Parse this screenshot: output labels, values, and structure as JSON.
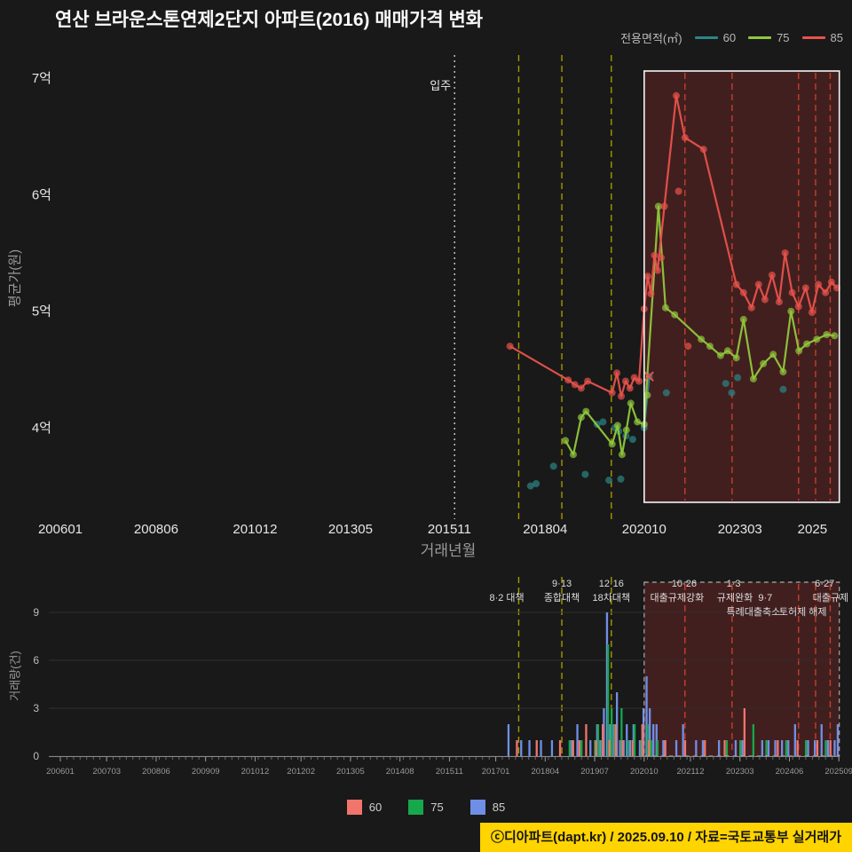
{
  "page": {
    "title": "연산 브라운스톤연제2단지 아파트(2016) 매매가격 변화",
    "footer_credit": "ⓒ디아파트(dapt.kr) / 2025.09.10 / 자료=국토교통부 실거래가"
  },
  "colors": {
    "background": "#191919",
    "highlight_fill": "rgba(163,45,45,0.30)",
    "highlight_border": "#f5f5f5",
    "highlight_border_dashed": "#aaaaaa",
    "event_yellow": "#a89700",
    "event_orange": "#c2402c",
    "movein_line": "#cccccc",
    "footer_bg": "#ffd400",
    "axis_text": "#e6e6e6",
    "muted_text": "#9a9a9a",
    "grid": "#2e2e2e"
  },
  "legend_top": {
    "title": "전용면적(㎡)",
    "items": [
      {
        "label": "60",
        "color": "#2b8686"
      },
      {
        "label": "75",
        "color": "#90c83c"
      },
      {
        "label": "85",
        "color": "#e8524c"
      }
    ]
  },
  "legend_bottom": {
    "items": [
      {
        "label": "60",
        "color": "#f1756a"
      },
      {
        "label": "75",
        "color": "#17a74c"
      },
      {
        "label": "85",
        "color": "#6f8fe6"
      }
    ]
  },
  "chart_data": [
    {
      "id": "price",
      "type": "line",
      "title": "연산 브라운스톤연제2단지 아파트(2016) 매매가격 변화",
      "xlabel": "거래년월",
      "ylabel": "평균가(원)",
      "x_range": [
        2006.04,
        2025.72
      ],
      "ylim": [
        3.2,
        7.2
      ],
      "yticks": [
        {
          "v": 4,
          "label": "4억"
        },
        {
          "v": 5,
          "label": "5억"
        },
        {
          "v": 6,
          "label": "6억"
        },
        {
          "v": 7,
          "label": "7억"
        }
      ],
      "xticks": [
        {
          "t": 2006.04,
          "label": "200601"
        },
        {
          "t": 2008.46,
          "label": "200806"
        },
        {
          "t": 2010.96,
          "label": "201012"
        },
        {
          "t": 2013.37,
          "label": "201305"
        },
        {
          "t": 2015.87,
          "label": "201511"
        },
        {
          "t": 2018.29,
          "label": "201804"
        },
        {
          "t": 2020.79,
          "label": "202010"
        },
        {
          "t": 2023.21,
          "label": "202303"
        },
        {
          "t": 2025.04,
          "label": "2025"
        }
      ],
      "movein_line": {
        "t": 2016.0,
        "label": "입주"
      },
      "event_lines_yellow": [
        {
          "t": 2017.62
        },
        {
          "t": 2018.71
        },
        {
          "t": 2019.96
        }
      ],
      "event_lines_orange": [
        {
          "t": 2021.82
        },
        {
          "t": 2023.01
        },
        {
          "t": 2024.69
        },
        {
          "t": 2025.12
        },
        {
          "t": 2025.49
        }
      ],
      "highlight_region": {
        "t0": 2020.79,
        "t1": 2025.72
      },
      "series": [
        {
          "name": "60",
          "color": "#2b8686",
          "line": [
            [
              2020.79,
              4.0
            ],
            [
              2020.92,
              4.44
            ]
          ],
          "extra_points": [
            [
              2017.92,
              3.5
            ],
            [
              2018.06,
              3.52
            ],
            [
              2018.5,
              3.67
            ],
            [
              2019.3,
              3.6
            ],
            [
              2019.6,
              4.03
            ],
            [
              2019.75,
              4.05
            ],
            [
              2019.9,
              3.55
            ],
            [
              2020.05,
              4.0
            ],
            [
              2020.15,
              3.97
            ],
            [
              2020.2,
              3.56
            ],
            [
              2020.33,
              3.93
            ],
            [
              2020.5,
              3.9
            ],
            [
              2021.35,
              4.3
            ],
            [
              2022.85,
              4.38
            ],
            [
              2023.0,
              4.3
            ],
            [
              2023.15,
              4.43
            ],
            [
              2024.3,
              4.33
            ]
          ]
        },
        {
          "name": "75",
          "color": "#90c83c",
          "line": [
            [
              2018.8,
              3.89
            ],
            [
              2019.0,
              3.77
            ],
            [
              2019.2,
              4.09
            ],
            [
              2019.32,
              4.14
            ],
            [
              2019.98,
              3.86
            ],
            [
              2020.12,
              4.02
            ],
            [
              2020.23,
              3.77
            ],
            [
              2020.34,
              3.98
            ],
            [
              2020.45,
              4.21
            ],
            [
              2020.62,
              4.05
            ],
            [
              2020.79,
              4.03
            ],
            [
              2021.15,
              5.9
            ],
            [
              2021.33,
              5.03
            ],
            [
              2021.56,
              4.97
            ],
            [
              2022.23,
              4.76
            ],
            [
              2022.45,
              4.7
            ],
            [
              2022.72,
              4.62
            ],
            [
              2022.9,
              4.66
            ],
            [
              2023.12,
              4.6
            ],
            [
              2023.3,
              4.93
            ],
            [
              2023.55,
              4.42
            ],
            [
              2023.8,
              4.55
            ],
            [
              2024.05,
              4.63
            ],
            [
              2024.3,
              4.48
            ],
            [
              2024.5,
              5.0
            ],
            [
              2024.7,
              4.66
            ],
            [
              2024.9,
              4.72
            ],
            [
              2025.15,
              4.76
            ],
            [
              2025.4,
              4.8
            ],
            [
              2025.6,
              4.79
            ]
          ],
          "extra_points": [
            [
              2020.87,
              4.28
            ]
          ]
        },
        {
          "name": "85",
          "color": "#e8524c",
          "line": [
            [
              2017.4,
              4.7
            ],
            [
              2018.87,
              4.41
            ],
            [
              2019.04,
              4.37
            ],
            [
              2019.2,
              4.34
            ],
            [
              2019.36,
              4.4
            ],
            [
              2019.98,
              4.3
            ],
            [
              2020.1,
              4.47
            ],
            [
              2020.21,
              4.27
            ],
            [
              2020.32,
              4.4
            ],
            [
              2020.43,
              4.34
            ],
            [
              2020.54,
              4.43
            ],
            [
              2020.66,
              4.4
            ],
            [
              2020.79,
              5.02
            ],
            [
              2020.88,
              5.3
            ],
            [
              2020.96,
              5.15
            ],
            [
              2021.05,
              5.48
            ],
            [
              2021.13,
              5.35
            ],
            [
              2021.3,
              5.9
            ],
            [
              2021.6,
              6.85
            ],
            [
              2021.82,
              6.49
            ],
            [
              2022.29,
              6.39
            ],
            [
              2023.12,
              5.23
            ],
            [
              2023.3,
              5.16
            ],
            [
              2023.5,
              5.03
            ],
            [
              2023.68,
              5.23
            ],
            [
              2023.84,
              5.1
            ],
            [
              2024.02,
              5.31
            ],
            [
              2024.2,
              5.08
            ],
            [
              2024.35,
              5.5
            ],
            [
              2024.53,
              5.16
            ],
            [
              2024.69,
              5.04
            ],
            [
              2024.87,
              5.2
            ],
            [
              2025.03,
              4.99
            ],
            [
              2025.19,
              5.23
            ],
            [
              2025.37,
              5.16
            ],
            [
              2025.52,
              5.25
            ],
            [
              2025.66,
              5.2
            ]
          ],
          "extra_points": [
            [
              2021.22,
              5.46
            ],
            [
              2021.66,
              6.03
            ],
            [
              2021.9,
              4.7
            ]
          ],
          "x_marker": [
            2020.91,
            4.44
          ]
        }
      ]
    },
    {
      "id": "volume",
      "type": "bar",
      "ylabel": "거래량(건)",
      "ylim": [
        0,
        9
      ],
      "yticks": [
        0,
        3,
        6,
        9
      ],
      "xticks": [
        {
          "t": 2006.04,
          "label": "200601"
        },
        {
          "t": 2007.21,
          "label": "200703"
        },
        {
          "t": 2008.46,
          "label": "200806"
        },
        {
          "t": 2009.71,
          "label": "200909"
        },
        {
          "t": 2010.96,
          "label": "201012"
        },
        {
          "t": 2012.12,
          "label": "201202"
        },
        {
          "t": 2013.37,
          "label": "201305"
        },
        {
          "t": 2014.62,
          "label": "201408"
        },
        {
          "t": 2015.87,
          "label": "201511"
        },
        {
          "t": 2017.04,
          "label": "201701"
        },
        {
          "t": 2018.29,
          "label": "201804"
        },
        {
          "t": 2019.54,
          "label": "201907"
        },
        {
          "t": 2020.79,
          "label": "202010"
        },
        {
          "t": 2021.96,
          "label": "202112"
        },
        {
          "t": 2023.21,
          "label": "202303"
        },
        {
          "t": 2024.46,
          "label": "202406"
        },
        {
          "t": 2025.71,
          "label": "202509"
        }
      ],
      "series_labels": [
        "60",
        "75",
        "85"
      ],
      "colors": [
        "#f1756a",
        "#17a74c",
        "#6f8fe6"
      ],
      "bars": [
        [
          2017.3,
          0,
          0,
          2
        ],
        [
          2017.62,
          1,
          0,
          1
        ],
        [
          2017.83,
          0,
          0,
          1
        ],
        [
          2018.12,
          1,
          0,
          1
        ],
        [
          2018.4,
          0,
          0,
          1
        ],
        [
          2018.71,
          1,
          0,
          0
        ],
        [
          2018.9,
          0,
          1,
          1
        ],
        [
          2019.04,
          1,
          0,
          2
        ],
        [
          2019.2,
          1,
          1,
          0
        ],
        [
          2019.37,
          2,
          0,
          1
        ],
        [
          2019.54,
          0,
          1,
          2
        ],
        [
          2019.62,
          1,
          2,
          1
        ],
        [
          2019.71,
          0,
          1,
          3
        ],
        [
          2019.79,
          2,
          0,
          9
        ],
        [
          2019.87,
          0,
          7,
          2
        ],
        [
          2019.96,
          1,
          3,
          2
        ],
        [
          2020.04,
          0,
          2,
          4
        ],
        [
          2020.12,
          2,
          0,
          1
        ],
        [
          2020.21,
          0,
          3,
          1
        ],
        [
          2020.29,
          1,
          0,
          2
        ],
        [
          2020.37,
          0,
          1,
          1
        ],
        [
          2020.46,
          0,
          0,
          2
        ],
        [
          2020.54,
          1,
          2,
          0
        ],
        [
          2020.62,
          0,
          0,
          1
        ],
        [
          2020.71,
          0,
          1,
          3
        ],
        [
          2020.79,
          2,
          0,
          5
        ],
        [
          2020.87,
          0,
          2,
          3
        ],
        [
          2020.96,
          1,
          1,
          2
        ],
        [
          2021.04,
          0,
          0,
          2
        ],
        [
          2021.12,
          0,
          1,
          0
        ],
        [
          2021.21,
          0,
          0,
          1
        ],
        [
          2021.37,
          1,
          0,
          0
        ],
        [
          2021.54,
          0,
          0,
          1
        ],
        [
          2021.71,
          0,
          0,
          2
        ],
        [
          2021.87,
          1,
          0,
          0
        ],
        [
          2022.04,
          0,
          0,
          1
        ],
        [
          2022.21,
          0,
          0,
          1
        ],
        [
          2022.37,
          1,
          0,
          0
        ],
        [
          2022.62,
          0,
          0,
          1
        ],
        [
          2022.87,
          1,
          1,
          0
        ],
        [
          2023.04,
          0,
          0,
          1
        ],
        [
          2023.21,
          0,
          1,
          1
        ],
        [
          2023.37,
          3,
          0,
          0
        ],
        [
          2023.54,
          0,
          2,
          0
        ],
        [
          2023.71,
          0,
          0,
          1
        ],
        [
          2023.87,
          0,
          1,
          1
        ],
        [
          2024.04,
          0,
          0,
          1
        ],
        [
          2024.21,
          1,
          0,
          1
        ],
        [
          2024.37,
          0,
          1,
          1
        ],
        [
          2024.54,
          0,
          0,
          2
        ],
        [
          2024.71,
          1,
          0,
          0
        ],
        [
          2024.87,
          0,
          1,
          1
        ],
        [
          2025.04,
          0,
          0,
          1
        ],
        [
          2025.21,
          1,
          0,
          2
        ],
        [
          2025.37,
          0,
          1,
          1
        ],
        [
          2025.54,
          1,
          0,
          1
        ],
        [
          2025.62,
          0,
          0,
          2
        ]
      ],
      "annotations": [
        {
          "t": 2017.32,
          "row": 1,
          "label": "8·2 대책"
        },
        {
          "t": 2018.71,
          "row": 0,
          "label": "9·13"
        },
        {
          "t": 2018.71,
          "row": 1,
          "label": "종합대책"
        },
        {
          "t": 2019.96,
          "row": 0,
          "label": "12·16"
        },
        {
          "t": 2019.96,
          "row": 1,
          "label": "18차대책"
        },
        {
          "t": 2021.8,
          "row": 0,
          "label": "10·26"
        },
        {
          "t": 2021.62,
          "row": 1,
          "label": "대출규제강화"
        },
        {
          "t": 2023.05,
          "row": 0,
          "label": "1·3"
        },
        {
          "t": 2023.08,
          "row": 1,
          "label": "규제완화"
        },
        {
          "t": 2023.85,
          "row": 1,
          "label": "9·7"
        },
        {
          "t": 2023.55,
          "row": 2,
          "label": "특례대출축소"
        },
        {
          "t": 2024.8,
          "row": 2,
          "label": "토허제 해제"
        },
        {
          "t": 2025.35,
          "row": 0,
          "label": "6·27"
        },
        {
          "t": 2025.5,
          "row": 1,
          "label": "대출규제"
        }
      ],
      "highlight_region": {
        "t0": 2020.79,
        "t1": 2025.72
      }
    }
  ]
}
